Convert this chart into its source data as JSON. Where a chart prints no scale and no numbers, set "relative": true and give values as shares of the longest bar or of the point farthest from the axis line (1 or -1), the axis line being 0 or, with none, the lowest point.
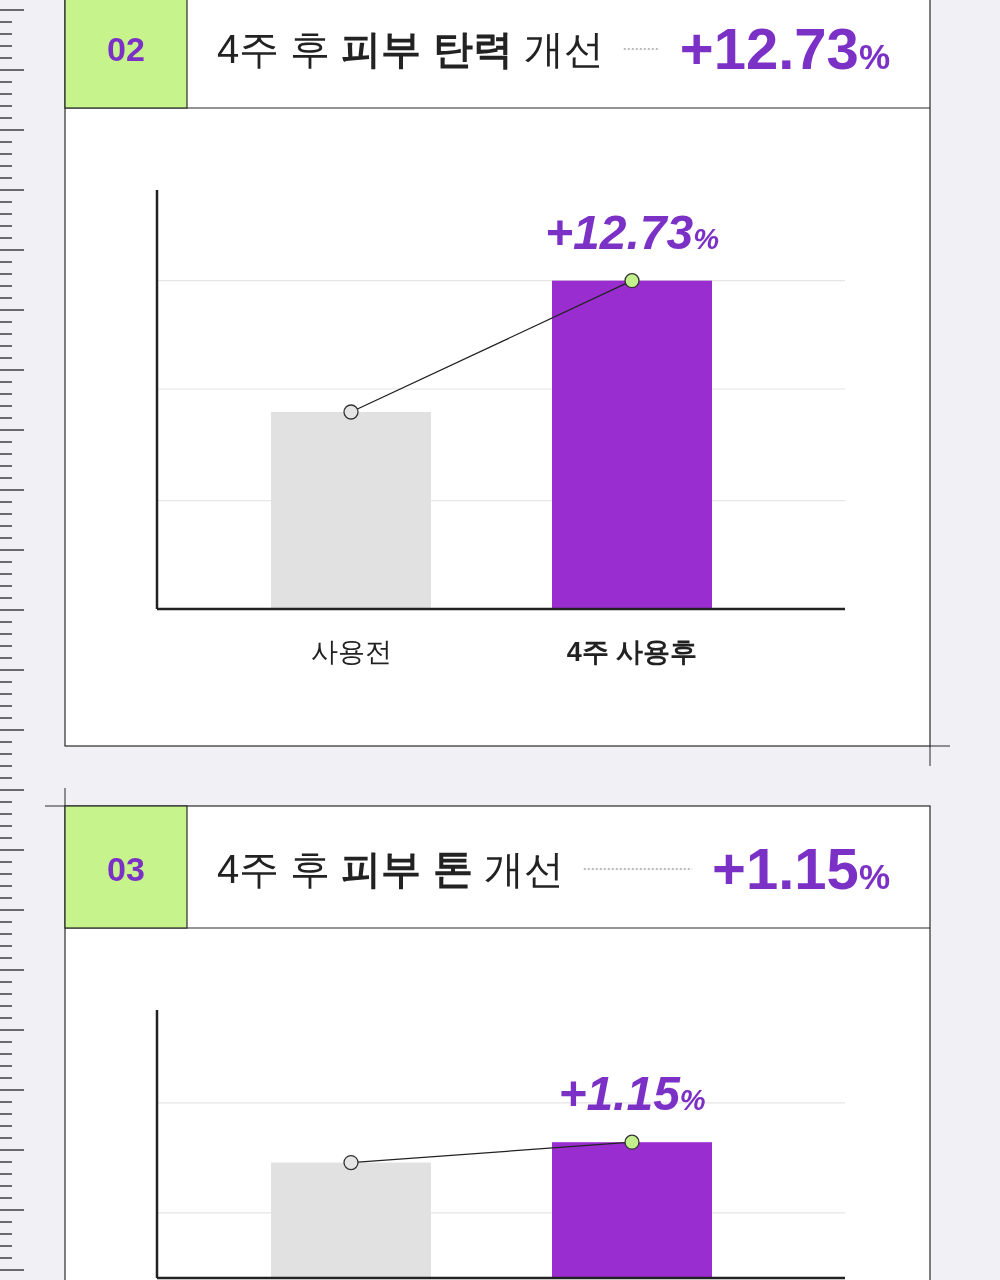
{
  "chart_data": [
    {
      "type": "bar",
      "title": "4주 후 피부 탄력 개선",
      "annotations": [
        "02",
        "+12.73%",
        "+12.73%"
      ],
      "categories": [
        "사용전",
        "4주 사용후"
      ],
      "relative": true,
      "marker": "circle",
      "ref_lines": [
        {
          "axis": "y",
          "value": 0.33,
          "color": "#e6e6e6"
        },
        {
          "axis": "y",
          "value": 0.67,
          "color": "#e6e6e6"
        },
        {
          "axis": "y",
          "value": 1,
          "color": "#e6e6e6"
        }
      ],
      "series": [
        {
          "colors": [
            "#e0e1e0",
            "#9a2dd0"
          ],
          "values": [
            0.6,
            1
          ]
        },
        {
          "type": "line",
          "color": "#222222",
          "colors": [
            "#e4e5e4",
            "#c3ef8c"
          ],
          "values": [
            0.6,
            1
          ]
        }
      ]
    },
    {
      "type": "bar",
      "title": "4주 후 피부 톤 개선",
      "annotations": [
        "03",
        "+1.15%",
        "+1.15%"
      ],
      "categories": [
        null,
        null
      ],
      "relative": true,
      "marker": "circle",
      "ref_lines": [
        {
          "axis": "y",
          "value": 0.48,
          "color": "#e6e6e6"
        },
        {
          "axis": "y",
          "value": 1.29,
          "color": "#e6e6e6"
        }
      ],
      "series": [
        {
          "colors": [
            "#e0e1e0",
            "#9a2dd0"
          ],
          "values": [
            0.85,
            1
          ]
        },
        {
          "type": "line",
          "color": "#222222",
          "colors": [
            "#e4e5e4",
            "#c3ef8c"
          ],
          "values": [
            0.85,
            1
          ]
        }
      ]
    }
  ]
}
